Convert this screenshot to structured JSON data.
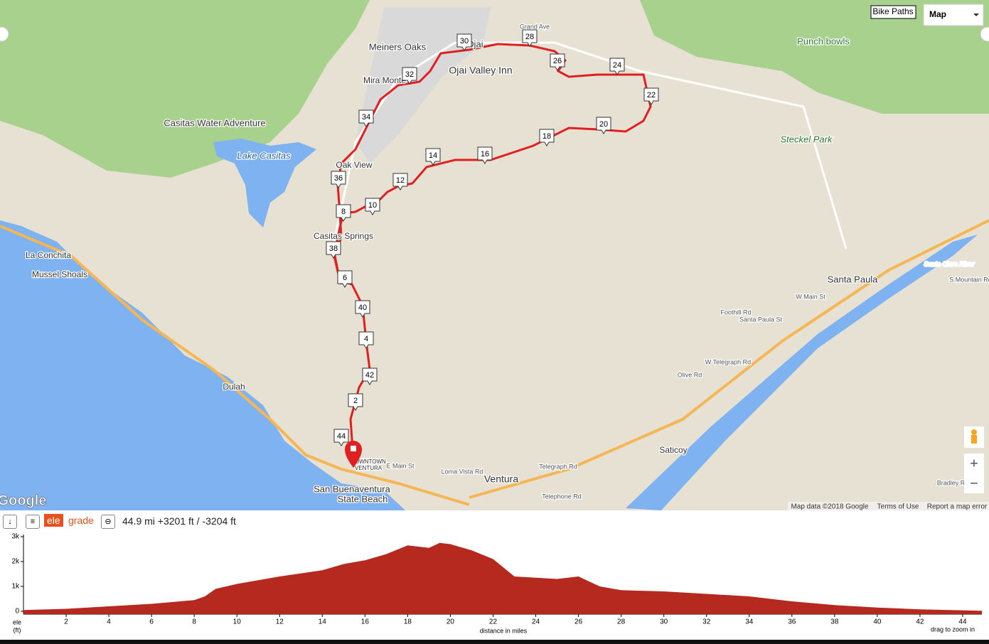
{
  "map": {
    "places": [
      "Meiners Oaks",
      "Ojai",
      "Ojai Valley Inn",
      "Mira Monte",
      "Casitas Water Adventure",
      "Lake Casitas",
      "Oak View",
      "Casitas Springs",
      "La Conchita",
      "Mussel Shoals",
      "Dulah",
      "Punch bowls",
      "Steckel Park",
      "Santa Paula",
      "Saticoy",
      "Ventura",
      "San Buenaventura",
      "State Beach",
      "DOWNTOWN",
      "VENTURA",
      "Grand Ave",
      "Foothill Rd",
      "Santa Paula St",
      "W Telegraph Rd",
      "Telegraph Rd",
      "Telephone Rd",
      "Loma Vista Rd",
      "E Main St",
      "W Main St",
      "Santa Clara River",
      "S Mountain Rd",
      "Olive Rd",
      "Bradley Rd"
    ],
    "route_markers": [
      "2",
      "4",
      "6",
      "8",
      "10",
      "12",
      "14",
      "16",
      "18",
      "20",
      "22",
      "24",
      "26",
      "28",
      "30",
      "32",
      "34",
      "36",
      "38",
      "40",
      "42",
      "44"
    ],
    "logo": "Google",
    "attribution": "Map data ©2018 Google",
    "terms": "Terms of Use",
    "report": "Report a map error",
    "controls": {
      "bike_paths": "Bike Paths",
      "map_type": "Map",
      "zoom_in": "+",
      "zoom_out": "−"
    }
  },
  "toolbar": {
    "ele": "ele",
    "grade": "grade",
    "summary": "44.9 mi +3201 ft / -3204 ft"
  },
  "chart_data": {
    "type": "area",
    "y_label": "ele",
    "y_unit": "(ft)",
    "x_label": "distance in miles",
    "hint": "drag to zoom in",
    "color": "#b5291f",
    "x": [
      0,
      2,
      4,
      6,
      8,
      8.5,
      9,
      10,
      12,
      14,
      15,
      16,
      17,
      18,
      19,
      19.5,
      20,
      21,
      22,
      23,
      24,
      25,
      26,
      27,
      28,
      30,
      32,
      34,
      36,
      38,
      40,
      42,
      44,
      44.9
    ],
    "values": [
      50,
      100,
      200,
      300,
      450,
      600,
      900,
      1100,
      1400,
      1650,
      1900,
      2050,
      2300,
      2650,
      2550,
      2750,
      2700,
      2450,
      2100,
      1400,
      1350,
      1300,
      1400,
      1000,
      850,
      800,
      700,
      600,
      400,
      250,
      150,
      80,
      40,
      20
    ],
    "xlim": [
      0,
      44.9
    ],
    "xticks": [
      2,
      4,
      6,
      8,
      10,
      12,
      14,
      16,
      18,
      20,
      22,
      24,
      26,
      28,
      30,
      32,
      34,
      36,
      38,
      40,
      42,
      44
    ],
    "ylim": [
      0,
      3000
    ],
    "yticks": [
      0,
      {
        "value": 1000,
        "label": "1k"
      },
      {
        "value": 2000,
        "label": "2k"
      },
      {
        "value": 3000,
        "label": "3k"
      }
    ]
  }
}
